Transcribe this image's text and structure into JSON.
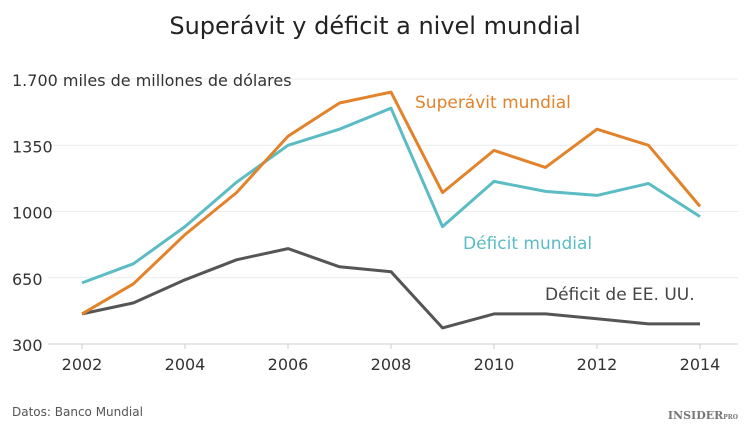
{
  "chart_data": {
    "type": "line",
    "title": "Superávit y déficit a nivel mundial",
    "ylabel": "miles de millones de dólares",
    "y_tick_labels": [
      "300",
      "650",
      "1000",
      "1350",
      "1.700 miles de millones de dólares"
    ],
    "y_ticks": [
      300,
      650,
      1000,
      1350,
      1700
    ],
    "ylim": [
      300,
      1700
    ],
    "x": [
      2002,
      2003,
      2004,
      2005,
      2006,
      2007,
      2008,
      2009,
      2010,
      2011,
      2012,
      2013,
      2014
    ],
    "x_ticks": [
      2002,
      2004,
      2006,
      2008,
      2010,
      2012,
      2014
    ],
    "x_tick_labels": [
      "2002",
      "2004",
      "2006",
      "2008",
      "2010",
      "2012",
      "2014"
    ],
    "grid": true,
    "series": [
      {
        "name": "Superávit mundial",
        "color": "#e2832b",
        "values": [
          459,
          618,
          878,
          1100,
          1398,
          1573,
          1631,
          1100,
          1323,
          1233,
          1435,
          1350,
          1027
        ]
      },
      {
        "name": "Déficit mundial",
        "color": "#5bbcc4",
        "values": [
          623,
          724,
          920,
          1154,
          1350,
          1435,
          1546,
          920,
          1159,
          1106,
          1085,
          1148,
          973
        ]
      },
      {
        "name": "Déficit de EE. UU.",
        "color": "#555555",
        "values": [
          459,
          517,
          639,
          745,
          804,
          708,
          682,
          385,
          459,
          459,
          433,
          406,
          406
        ]
      }
    ],
    "source": "Datos: Banco Mundial",
    "logo": "INSIDER PRO"
  }
}
